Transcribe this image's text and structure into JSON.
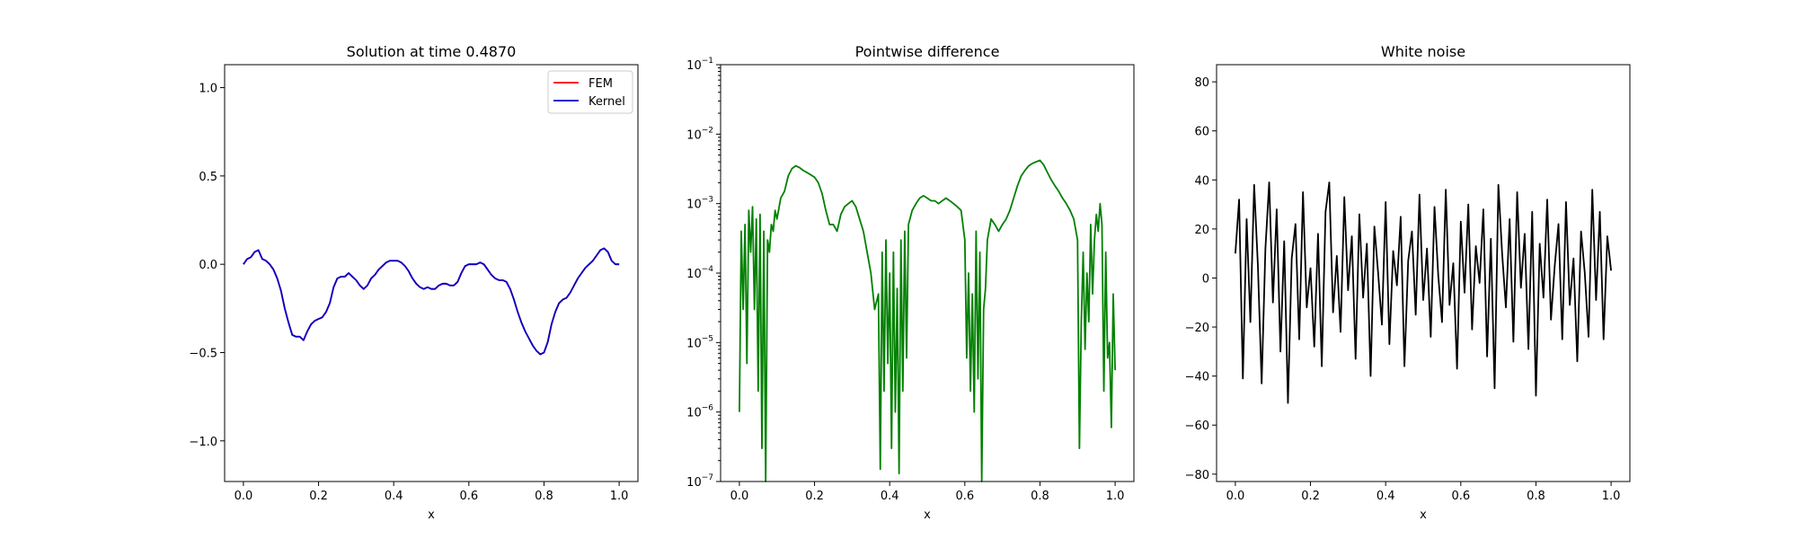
{
  "chart_data": [
    {
      "type": "line",
      "title": "Solution at time 0.4870",
      "xlabel": "x",
      "ylabel": "",
      "xlim": [
        -0.05,
        1.05
      ],
      "ylim": [
        -1.23,
        1.13
      ],
      "xticks": [
        0.0,
        0.2,
        0.4,
        0.6,
        0.8,
        1.0
      ],
      "xtick_labels": [
        "0.0",
        "0.2",
        "0.4",
        "0.6",
        "0.8",
        "1.0"
      ],
      "yticks": [
        -1.0,
        -0.5,
        0.0,
        0.5,
        1.0
      ],
      "ytick_labels": [
        "−1.0",
        "−0.5",
        "0.0",
        "0.5",
        "1.0"
      ],
      "legend": "top-right",
      "grid": false,
      "series": [
        {
          "name": "FEM",
          "color": "#ff0000",
          "x": [
            0.0,
            0.01,
            0.02,
            0.03,
            0.04,
            0.05,
            0.06,
            0.07,
            0.08,
            0.09,
            0.1,
            0.11,
            0.12,
            0.13,
            0.14,
            0.15,
            0.16,
            0.17,
            0.18,
            0.19,
            0.2,
            0.21,
            0.22,
            0.23,
            0.24,
            0.25,
            0.26,
            0.27,
            0.28,
            0.29,
            0.3,
            0.31,
            0.32,
            0.33,
            0.34,
            0.35,
            0.36,
            0.37,
            0.38,
            0.39,
            0.4,
            0.41,
            0.42,
            0.43,
            0.44,
            0.45,
            0.46,
            0.47,
            0.48,
            0.49,
            0.5,
            0.51,
            0.52,
            0.53,
            0.54,
            0.55,
            0.56,
            0.57,
            0.58,
            0.59,
            0.6,
            0.61,
            0.62,
            0.63,
            0.64,
            0.65,
            0.66,
            0.67,
            0.68,
            0.69,
            0.7,
            0.71,
            0.72,
            0.73,
            0.74,
            0.75,
            0.76,
            0.77,
            0.78,
            0.79,
            0.8,
            0.81,
            0.82,
            0.83,
            0.84,
            0.85,
            0.86,
            0.87,
            0.88,
            0.89,
            0.9,
            0.91,
            0.92,
            0.93,
            0.94,
            0.95,
            0.96,
            0.97,
            0.98,
            0.99,
            1.0
          ],
          "y": [
            0.0,
            0.03,
            0.04,
            0.07,
            0.08,
            0.03,
            0.02,
            0.0,
            -0.03,
            -0.08,
            -0.15,
            -0.25,
            -0.33,
            -0.4,
            -0.41,
            -0.41,
            -0.43,
            -0.38,
            -0.34,
            -0.32,
            -0.31,
            -0.3,
            -0.27,
            -0.22,
            -0.13,
            -0.08,
            -0.07,
            -0.07,
            -0.05,
            -0.07,
            -0.09,
            -0.12,
            -0.14,
            -0.12,
            -0.08,
            -0.06,
            -0.03,
            -0.01,
            0.01,
            0.02,
            0.02,
            0.02,
            0.01,
            -0.01,
            -0.04,
            -0.08,
            -0.11,
            -0.13,
            -0.14,
            -0.13,
            -0.14,
            -0.14,
            -0.12,
            -0.11,
            -0.11,
            -0.12,
            -0.12,
            -0.1,
            -0.05,
            -0.01,
            0.0,
            0.0,
            0.0,
            0.01,
            0.0,
            -0.03,
            -0.06,
            -0.08,
            -0.09,
            -0.09,
            -0.1,
            -0.14,
            -0.2,
            -0.27,
            -0.33,
            -0.38,
            -0.42,
            -0.46,
            -0.49,
            -0.51,
            -0.5,
            -0.44,
            -0.34,
            -0.27,
            -0.22,
            -0.2,
            -0.19,
            -0.16,
            -0.12,
            -0.08,
            -0.05,
            -0.02,
            0.0,
            0.02,
            0.05,
            0.08,
            0.09,
            0.07,
            0.02,
            0.0,
            0.0
          ]
        },
        {
          "name": "Kernel",
          "color": "#0000cc",
          "x": [
            0.0,
            0.01,
            0.02,
            0.03,
            0.04,
            0.05,
            0.06,
            0.07,
            0.08,
            0.09,
            0.1,
            0.11,
            0.12,
            0.13,
            0.14,
            0.15,
            0.16,
            0.17,
            0.18,
            0.19,
            0.2,
            0.21,
            0.22,
            0.23,
            0.24,
            0.25,
            0.26,
            0.27,
            0.28,
            0.29,
            0.3,
            0.31,
            0.32,
            0.33,
            0.34,
            0.35,
            0.36,
            0.37,
            0.38,
            0.39,
            0.4,
            0.41,
            0.42,
            0.43,
            0.44,
            0.45,
            0.46,
            0.47,
            0.48,
            0.49,
            0.5,
            0.51,
            0.52,
            0.53,
            0.54,
            0.55,
            0.56,
            0.57,
            0.58,
            0.59,
            0.6,
            0.61,
            0.62,
            0.63,
            0.64,
            0.65,
            0.66,
            0.67,
            0.68,
            0.69,
            0.7,
            0.71,
            0.72,
            0.73,
            0.74,
            0.75,
            0.76,
            0.77,
            0.78,
            0.79,
            0.8,
            0.81,
            0.82,
            0.83,
            0.84,
            0.85,
            0.86,
            0.87,
            0.88,
            0.89,
            0.9,
            0.91,
            0.92,
            0.93,
            0.94,
            0.95,
            0.96,
            0.97,
            0.98,
            0.99,
            1.0
          ],
          "y": [
            0.0,
            0.03,
            0.04,
            0.07,
            0.08,
            0.03,
            0.02,
            0.0,
            -0.03,
            -0.08,
            -0.15,
            -0.25,
            -0.33,
            -0.4,
            -0.41,
            -0.41,
            -0.43,
            -0.38,
            -0.34,
            -0.32,
            -0.31,
            -0.3,
            -0.27,
            -0.22,
            -0.13,
            -0.08,
            -0.07,
            -0.07,
            -0.05,
            -0.07,
            -0.09,
            -0.12,
            -0.14,
            -0.12,
            -0.08,
            -0.06,
            -0.03,
            -0.01,
            0.01,
            0.02,
            0.02,
            0.02,
            0.01,
            -0.01,
            -0.04,
            -0.08,
            -0.11,
            -0.13,
            -0.14,
            -0.13,
            -0.14,
            -0.14,
            -0.12,
            -0.11,
            -0.11,
            -0.12,
            -0.12,
            -0.1,
            -0.05,
            -0.01,
            0.0,
            0.0,
            0.0,
            0.01,
            0.0,
            -0.03,
            -0.06,
            -0.08,
            -0.09,
            -0.09,
            -0.1,
            -0.14,
            -0.2,
            -0.27,
            -0.33,
            -0.38,
            -0.42,
            -0.46,
            -0.49,
            -0.51,
            -0.5,
            -0.44,
            -0.34,
            -0.27,
            -0.22,
            -0.2,
            -0.19,
            -0.16,
            -0.12,
            -0.08,
            -0.05,
            -0.02,
            0.0,
            0.02,
            0.05,
            0.08,
            0.09,
            0.07,
            0.02,
            0.0,
            0.0
          ]
        }
      ]
    },
    {
      "type": "line",
      "title": "Pointwise difference",
      "xlabel": "x",
      "ylabel": "",
      "yscale": "log",
      "xlim": [
        -0.05,
        1.05
      ],
      "ylim": [
        1e-07,
        0.1
      ],
      "xticks": [
        0.0,
        0.2,
        0.4,
        0.6,
        0.8,
        1.0
      ],
      "xtick_labels": [
        "0.0",
        "0.2",
        "0.4",
        "0.6",
        "0.8",
        "1.0"
      ],
      "yticks": [
        1e-07,
        1e-06,
        1e-05,
        0.0001,
        0.001,
        0.01,
        0.1
      ],
      "ytick_base": [
        "10",
        "10",
        "10",
        "10",
        "10",
        "10",
        "10"
      ],
      "ytick_exp": [
        "−7",
        "−6",
        "−5",
        "−4",
        "−3",
        "−2",
        "−1"
      ],
      "grid": false,
      "series": [
        {
          "color": "#008000",
          "x": [
            0.0,
            0.005,
            0.01,
            0.015,
            0.02,
            0.025,
            0.03,
            0.035,
            0.04,
            0.045,
            0.05,
            0.055,
            0.06,
            0.065,
            0.07,
            0.075,
            0.08,
            0.085,
            0.09,
            0.095,
            0.1,
            0.11,
            0.12,
            0.13,
            0.14,
            0.15,
            0.16,
            0.17,
            0.18,
            0.19,
            0.2,
            0.21,
            0.22,
            0.23,
            0.24,
            0.25,
            0.26,
            0.27,
            0.28,
            0.29,
            0.3,
            0.31,
            0.32,
            0.33,
            0.34,
            0.35,
            0.36,
            0.37,
            0.375,
            0.38,
            0.385,
            0.39,
            0.395,
            0.4,
            0.405,
            0.41,
            0.415,
            0.42,
            0.425,
            0.43,
            0.435,
            0.44,
            0.445,
            0.45,
            0.46,
            0.47,
            0.48,
            0.49,
            0.5,
            0.51,
            0.52,
            0.53,
            0.54,
            0.55,
            0.56,
            0.57,
            0.58,
            0.59,
            0.6,
            0.605,
            0.61,
            0.615,
            0.62,
            0.625,
            0.63,
            0.635,
            0.64,
            0.645,
            0.65,
            0.655,
            0.66,
            0.67,
            0.68,
            0.69,
            0.7,
            0.71,
            0.72,
            0.73,
            0.74,
            0.75,
            0.76,
            0.77,
            0.78,
            0.79,
            0.8,
            0.81,
            0.82,
            0.83,
            0.84,
            0.85,
            0.86,
            0.87,
            0.88,
            0.89,
            0.9,
            0.905,
            0.91,
            0.915,
            0.92,
            0.925,
            0.93,
            0.935,
            0.94,
            0.945,
            0.95,
            0.955,
            0.96,
            0.965,
            0.97,
            0.975,
            0.98,
            0.985,
            0.99,
            0.995,
            1.0
          ],
          "y": [
            1e-06,
            0.0004,
            3e-05,
            0.0005,
            5e-06,
            0.0008,
            0.0002,
            0.0009,
            3e-05,
            0.0006,
            2e-06,
            0.0007,
            3e-07,
            0.0004,
            1e-07,
            0.0003,
            0.0002,
            0.0005,
            0.0004,
            0.0008,
            0.0006,
            0.0012,
            0.0015,
            0.0025,
            0.0032,
            0.0035,
            0.0033,
            0.003,
            0.0028,
            0.0026,
            0.0024,
            0.002,
            0.0014,
            0.0008,
            0.0005,
            0.0005,
            0.0004,
            0.0007,
            0.0009,
            0.001,
            0.0011,
            0.0009,
            0.0006,
            0.0004,
            0.0002,
            0.0001,
            3e-05,
            5e-05,
            1.5e-07,
            0.0002,
            2e-06,
            0.0003,
            5e-06,
            0.0001,
            3e-07,
            0.0002,
            1e-06,
            6e-05,
            1.3e-07,
            0.0003,
            2e-06,
            0.0004,
            6e-06,
            0.0005,
            0.0008,
            0.001,
            0.0012,
            0.0013,
            0.0012,
            0.0011,
            0.0011,
            0.001,
            0.0011,
            0.0012,
            0.0011,
            0.001,
            0.0009,
            0.0008,
            0.0003,
            6e-06,
            0.0001,
            2e-06,
            5e-05,
            1e-06,
            0.0004,
            3e-06,
            0.0002,
            1e-07,
            3e-05,
            6e-05,
            0.0003,
            0.0006,
            0.0005,
            0.0004,
            0.0005,
            0.0006,
            0.0008,
            0.0012,
            0.0018,
            0.0025,
            0.003,
            0.0035,
            0.0038,
            0.004,
            0.0042,
            0.0036,
            0.0028,
            0.0022,
            0.0018,
            0.0015,
            0.0012,
            0.001,
            0.0008,
            0.0006,
            0.0003,
            3e-07,
            2e-05,
            0.0002,
            8e-06,
            0.0001,
            2e-05,
            0.0005,
            5e-05,
            0.0003,
            0.0007,
            0.0004,
            0.001,
            0.0005,
            2e-06,
            0.0002,
            6e-06,
            1e-05,
            6e-07,
            5e-05,
            4e-06
          ]
        }
      ]
    },
    {
      "type": "line",
      "title": "White noise",
      "xlabel": "x",
      "ylabel": "",
      "xlim": [
        -0.05,
        1.05
      ],
      "ylim": [
        -83,
        87
      ],
      "xticks": [
        0.0,
        0.2,
        0.4,
        0.6,
        0.8,
        1.0
      ],
      "xtick_labels": [
        "0.0",
        "0.2",
        "0.4",
        "0.6",
        "0.8",
        "1.0"
      ],
      "yticks": [
        -80,
        -60,
        -40,
        -20,
        0,
        20,
        40,
        60,
        80
      ],
      "ytick_labels": [
        "−80",
        "−60",
        "−40",
        "−20",
        "0",
        "20",
        "40",
        "60",
        "80"
      ],
      "grid": false,
      "series": [
        {
          "color": "#000000",
          "x": [
            0.0,
            0.01,
            0.02,
            0.03,
            0.04,
            0.05,
            0.06,
            0.07,
            0.08,
            0.09,
            0.1,
            0.11,
            0.12,
            0.13,
            0.14,
            0.15,
            0.16,
            0.17,
            0.18,
            0.19,
            0.2,
            0.21,
            0.22,
            0.23,
            0.24,
            0.25,
            0.26,
            0.27,
            0.28,
            0.29,
            0.3,
            0.31,
            0.32,
            0.33,
            0.34,
            0.35,
            0.36,
            0.37,
            0.38,
            0.39,
            0.4,
            0.41,
            0.42,
            0.43,
            0.44,
            0.45,
            0.46,
            0.47,
            0.48,
            0.49,
            0.5,
            0.51,
            0.52,
            0.53,
            0.54,
            0.55,
            0.56,
            0.57,
            0.58,
            0.59,
            0.6,
            0.61,
            0.62,
            0.63,
            0.64,
            0.65,
            0.66,
            0.67,
            0.68,
            0.69,
            0.7,
            0.71,
            0.72,
            0.73,
            0.74,
            0.75,
            0.76,
            0.77,
            0.78,
            0.79,
            0.8,
            0.81,
            0.82,
            0.83,
            0.84,
            0.85,
            0.86,
            0.87,
            0.88,
            0.89,
            0.9,
            0.91,
            0.92,
            0.93,
            0.94,
            0.95,
            0.96,
            0.97,
            0.98,
            0.99,
            1.0
          ],
          "y": [
            10,
            32,
            -41,
            24,
            -18,
            38,
            5,
            -43,
            12,
            39,
            -10,
            28,
            -30,
            15,
            -51,
            8,
            22,
            -25,
            35,
            -12,
            4,
            -28,
            18,
            -36,
            27,
            39,
            -14,
            9,
            -22,
            33,
            -5,
            17,
            -33,
            26,
            -8,
            14,
            -40,
            21,
            2,
            -19,
            31,
            -27,
            11,
            -3,
            25,
            -36,
            7,
            19,
            -15,
            34,
            -9,
            12,
            -24,
            29,
            1,
            -18,
            36,
            -11,
            6,
            -37,
            23,
            -6,
            30,
            -21,
            13,
            -2,
            28,
            -32,
            16,
            -45,
            38,
            10,
            -12,
            24,
            -26,
            35,
            -4,
            18,
            -29,
            27,
            -48,
            14,
            -8,
            32,
            -17,
            5,
            22,
            -25,
            31,
            -11,
            8,
            -34,
            19,
            2,
            -24,
            36,
            -9,
            27,
            -25,
            17,
            3
          ]
        }
      ]
    }
  ]
}
